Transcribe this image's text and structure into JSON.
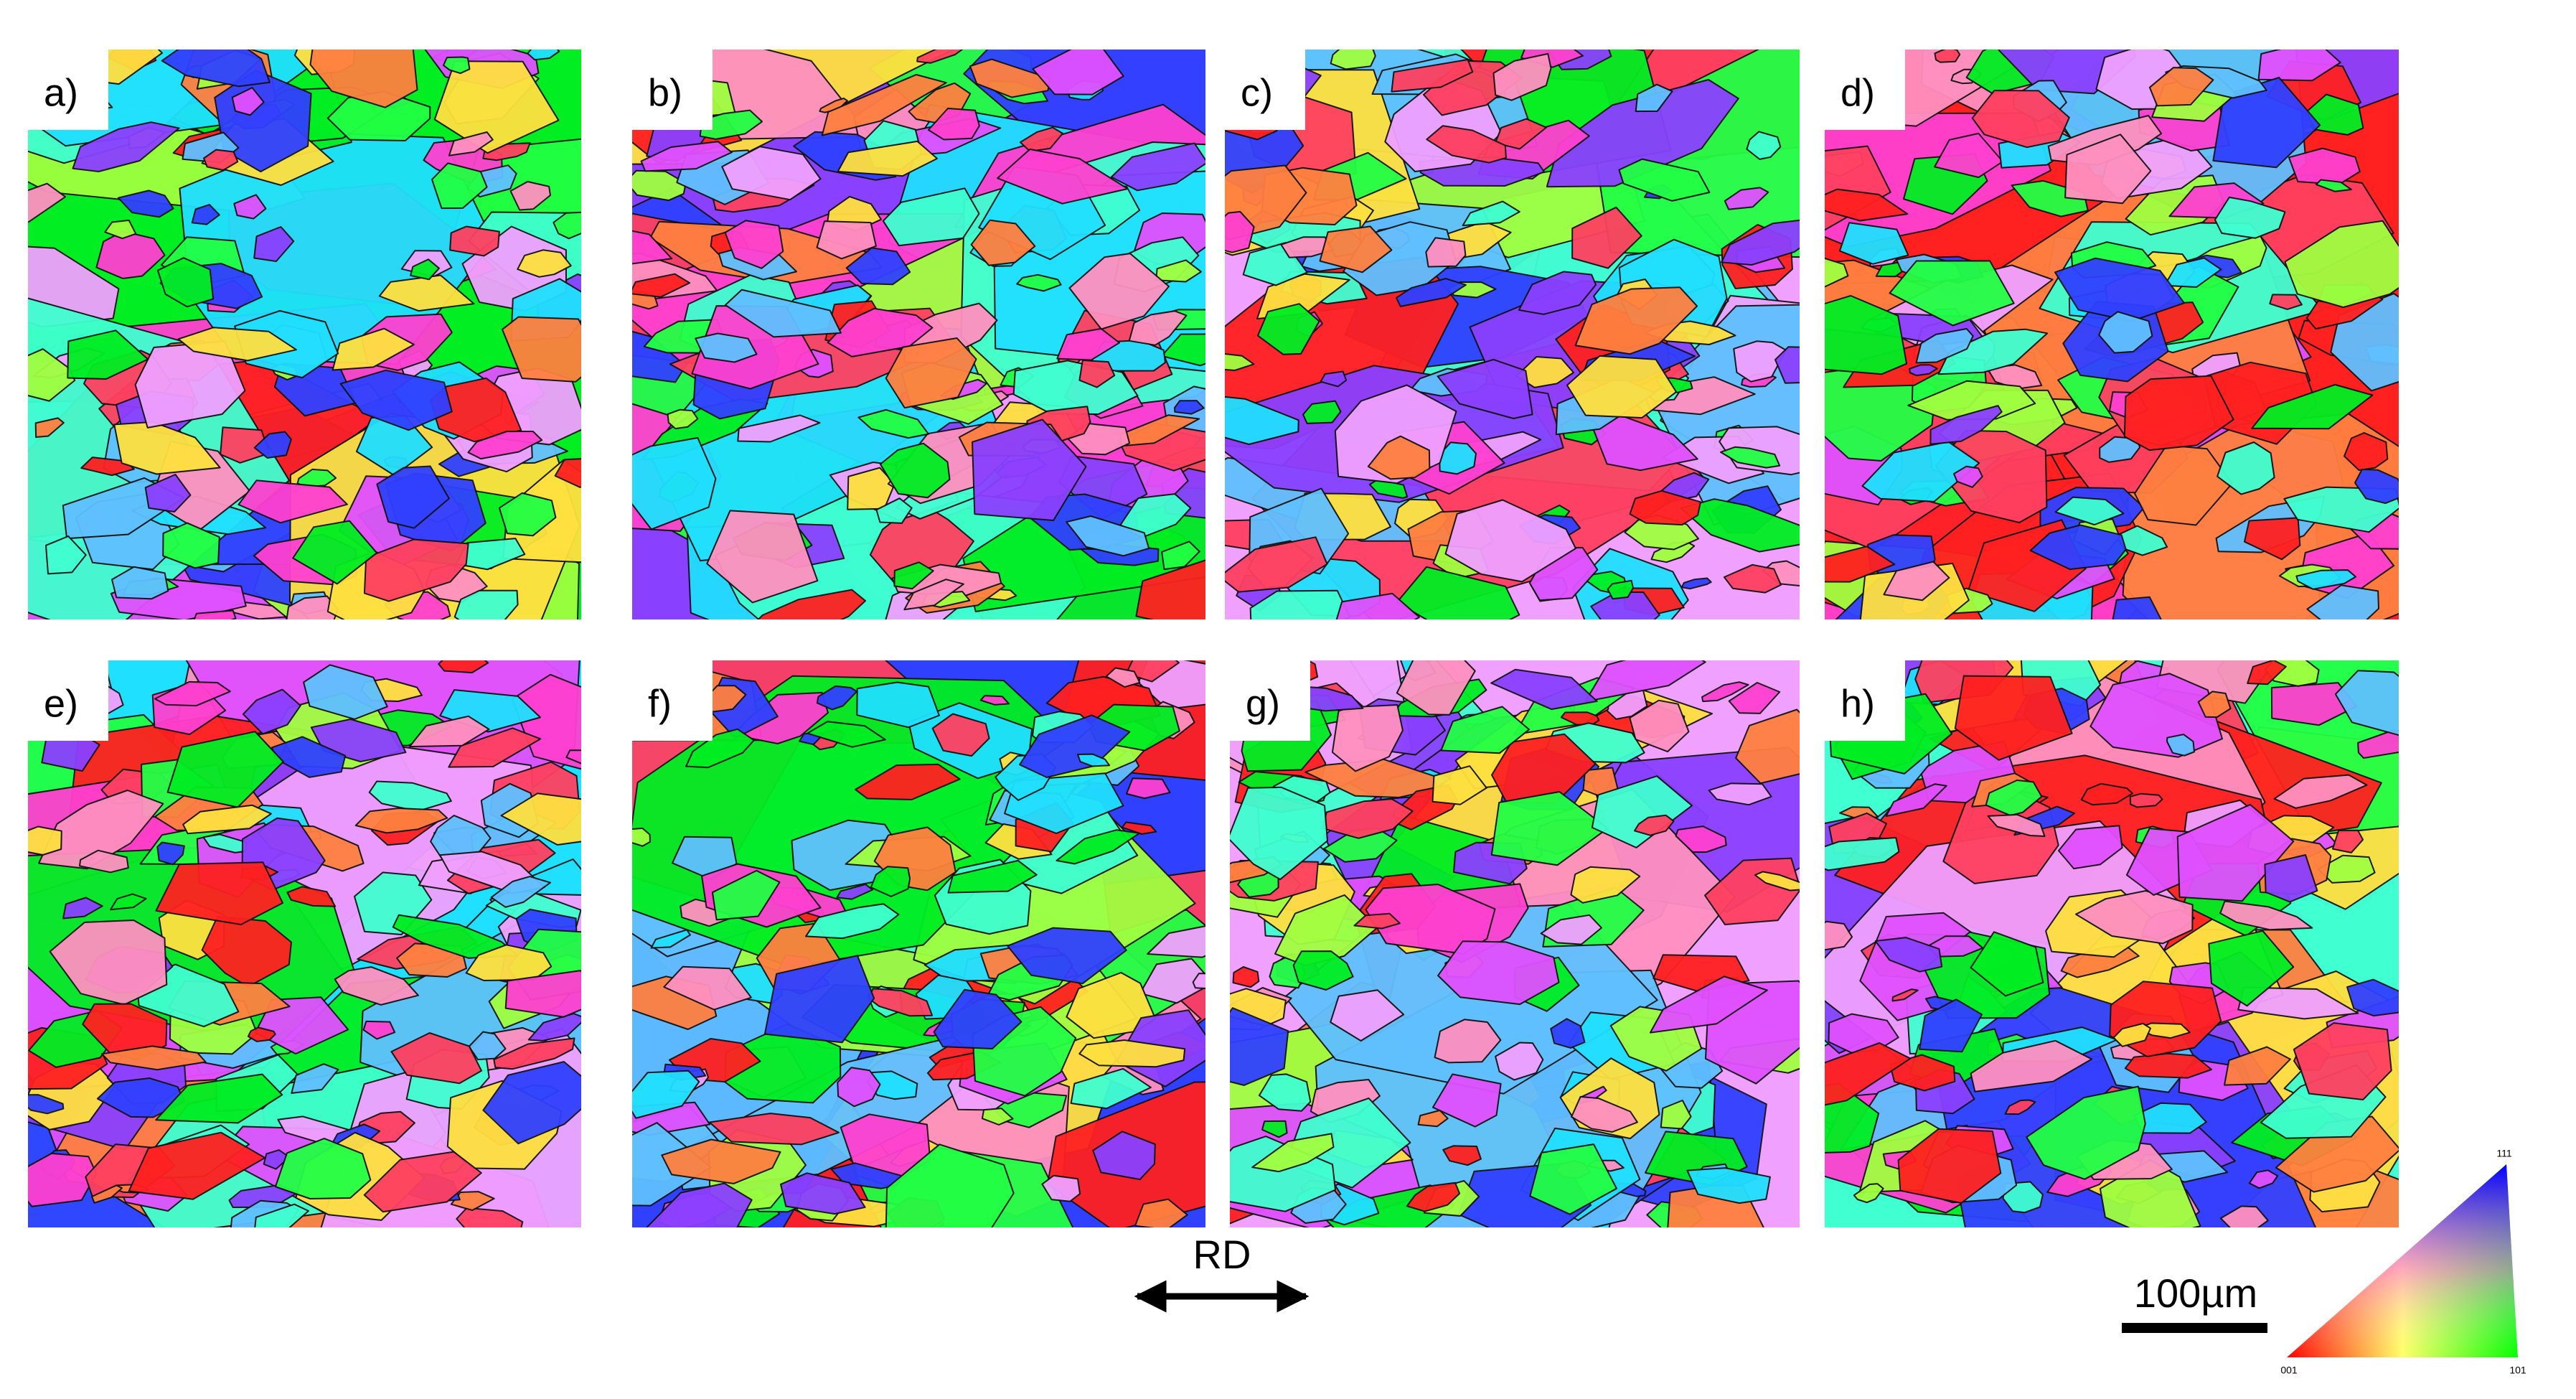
{
  "figure": {
    "panels": [
      {
        "label": "a)"
      },
      {
        "label": "b)"
      },
      {
        "label": "c)"
      },
      {
        "label": "d)"
      },
      {
        "label": "e)"
      },
      {
        "label": "f)"
      },
      {
        "label": "g)"
      },
      {
        "label": "h)"
      }
    ],
    "direction_label": "RD",
    "scale_bar_label": "100µm",
    "ipf_key": {
      "bottom_left": "001",
      "bottom_right": "101",
      "top": "111"
    }
  }
}
